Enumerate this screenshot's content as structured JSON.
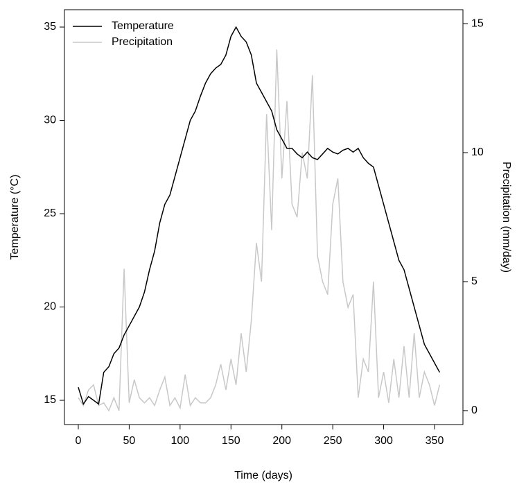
{
  "chart_data": {
    "type": "line",
    "x_label": "Time (days)",
    "y_label": "Temperature (°C)",
    "y2_label": "Precipitation (mm/day)",
    "x": [
      0,
      5,
      10,
      15,
      20,
      25,
      30,
      35,
      40,
      45,
      50,
      55,
      60,
      65,
      70,
      75,
      80,
      85,
      90,
      95,
      100,
      105,
      110,
      115,
      120,
      125,
      130,
      135,
      140,
      145,
      150,
      155,
      160,
      165,
      170,
      175,
      180,
      185,
      190,
      195,
      200,
      205,
      210,
      215,
      220,
      225,
      230,
      235,
      240,
      245,
      250,
      255,
      260,
      265,
      270,
      275,
      280,
      285,
      290,
      295,
      300,
      305,
      310,
      315,
      320,
      325,
      330,
      335,
      340,
      345,
      350,
      355
    ],
    "series": [
      {
        "name": "Temperature",
        "color": "#000000",
        "values": [
          15.7,
          14.8,
          15.2,
          15.0,
          14.8,
          16.5,
          16.8,
          17.5,
          17.8,
          18.5,
          19.0,
          19.5,
          20.0,
          20.8,
          22.0,
          23.0,
          24.5,
          25.5,
          26.0,
          27.0,
          28.0,
          29.0,
          30.0,
          30.5,
          31.3,
          32.0,
          32.5,
          32.8,
          33.0,
          33.5,
          34.5,
          35.0,
          34.5,
          34.2,
          33.5,
          32.0,
          31.5,
          31.0,
          30.5,
          29.5,
          29.0,
          28.5,
          28.5,
          28.2,
          28.0,
          28.3,
          28.0,
          27.9,
          28.2,
          28.5,
          28.3,
          28.2,
          28.4,
          28.5,
          28.3,
          28.5,
          28.0,
          27.7,
          27.5,
          26.5,
          25.5,
          24.5,
          23.5,
          22.5,
          22.0,
          21.0,
          20.0,
          19.0,
          18.0,
          17.5,
          17.0,
          16.5
        ]
      },
      {
        "name": "Precipitation",
        "color": "#c8c8c8",
        "axis": "y2",
        "values": [
          0.5,
          0.2,
          0.8,
          1.0,
          0.2,
          0.3,
          0,
          0.5,
          0,
          5.5,
          0.3,
          1.2,
          0.5,
          0.3,
          0.5,
          0.2,
          0.8,
          1.3,
          0.2,
          0.5,
          0.1,
          1.4,
          0.2,
          0.5,
          0.3,
          0.3,
          0.5,
          1.0,
          1.8,
          0.8,
          2.0,
          1.0,
          3.0,
          1.5,
          3.5,
          6.5,
          5.0,
          11.5,
          7.0,
          14.0,
          9.0,
          12.0,
          8.0,
          7.5,
          10.0,
          9.0,
          13.0,
          6.0,
          5.0,
          4.5,
          8.0,
          9.0,
          5.0,
          4.0,
          4.5,
          0.5,
          2.0,
          1.5,
          5.0,
          0.5,
          1.5,
          0.3,
          2.0,
          0.5,
          2.5,
          0.5,
          3.0,
          0.5,
          1.5,
          1.0,
          0.2,
          1.0
        ]
      }
    ],
    "xlim": [
      -13.6,
      377.9
    ],
    "xticks": [
      0,
      50,
      100,
      150,
      200,
      250,
      300,
      350
    ],
    "ylim": [
      13.7,
      35.93
    ],
    "yticks": [
      15,
      20,
      25,
      30,
      35
    ],
    "y2lim": [
      -0.54,
      15.54
    ],
    "y2ticks": [
      0,
      5,
      10,
      15
    ],
    "legend": "top-left"
  }
}
